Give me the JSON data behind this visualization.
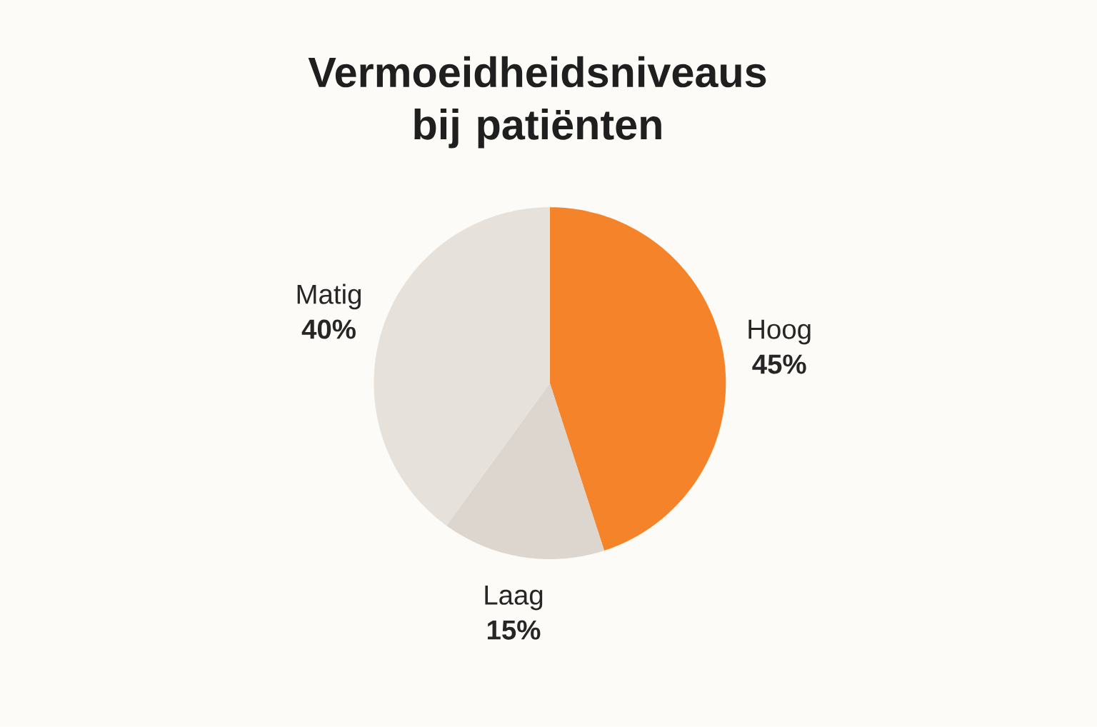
{
  "chart_data": {
    "type": "pie",
    "title": "Vermoeidheidsniveaus bij patiënten",
    "categories": [
      "Hoog",
      "Laag",
      "Matig"
    ],
    "values": [
      45,
      15,
      40
    ],
    "value_labels": [
      "45%",
      "15%",
      "40%"
    ],
    "colors": [
      "#f5832a",
      "#dcd6cf",
      "#e6e1db"
    ]
  }
}
